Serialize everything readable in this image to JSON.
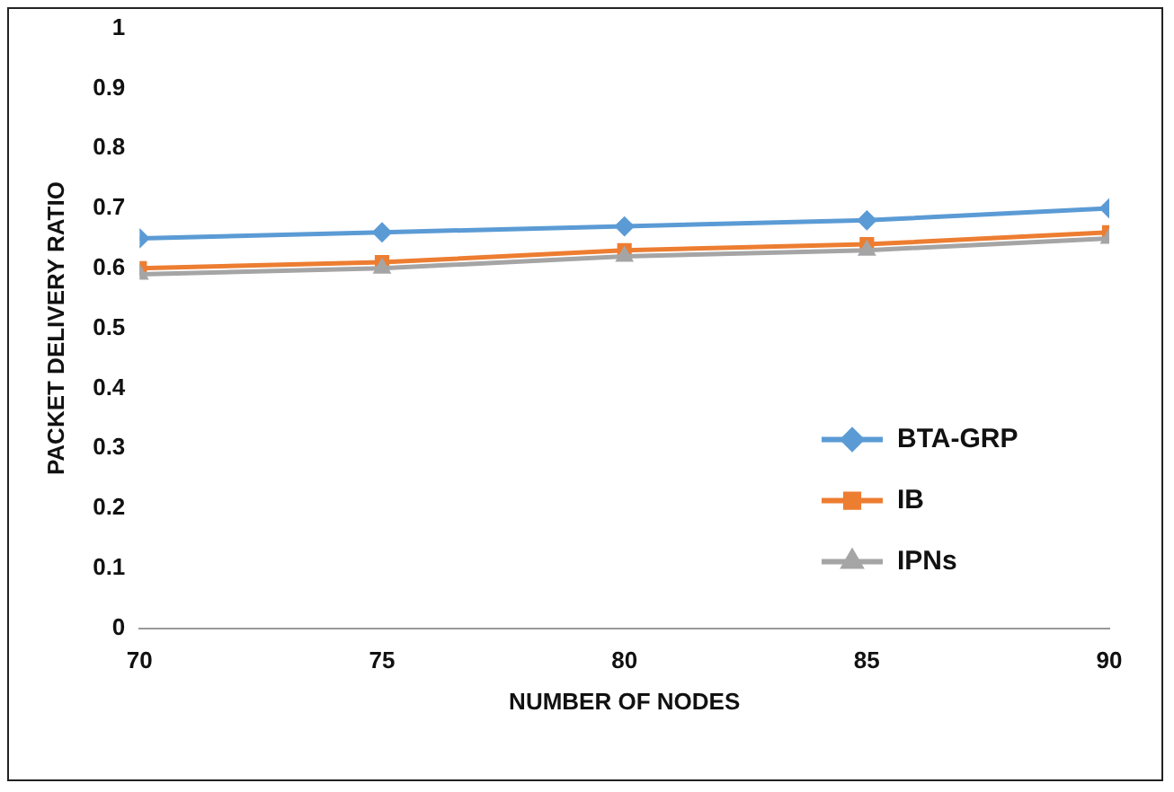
{
  "chart_data": {
    "type": "line",
    "xlabel": "NUMBER OF NODES",
    "ylabel": "PACKET DELIVERY RATIO",
    "x": [
      70,
      75,
      80,
      85,
      90
    ],
    "xlim": [
      70,
      90
    ],
    "xticks": [
      70,
      75,
      80,
      85,
      90
    ],
    "ylim": [
      0,
      1
    ],
    "yticks": [
      0,
      0.1,
      0.2,
      0.3,
      0.4,
      0.5,
      0.6,
      0.7,
      0.8,
      0.9,
      1
    ],
    "grid": false,
    "legend": "bottom right",
    "series": [
      {
        "name": "BTA-GRP",
        "color": "#5b9bd5",
        "marker": "diamond",
        "values": [
          0.65,
          0.66,
          0.67,
          0.68,
          0.7
        ]
      },
      {
        "name": "IB",
        "color": "#ed7d31",
        "marker": "square",
        "values": [
          0.6,
          0.61,
          0.63,
          0.64,
          0.66
        ]
      },
      {
        "name": "IPNs",
        "color": "#a5a5a5",
        "marker": "triangle",
        "values": [
          0.59,
          0.6,
          0.62,
          0.63,
          0.65
        ]
      }
    ]
  }
}
